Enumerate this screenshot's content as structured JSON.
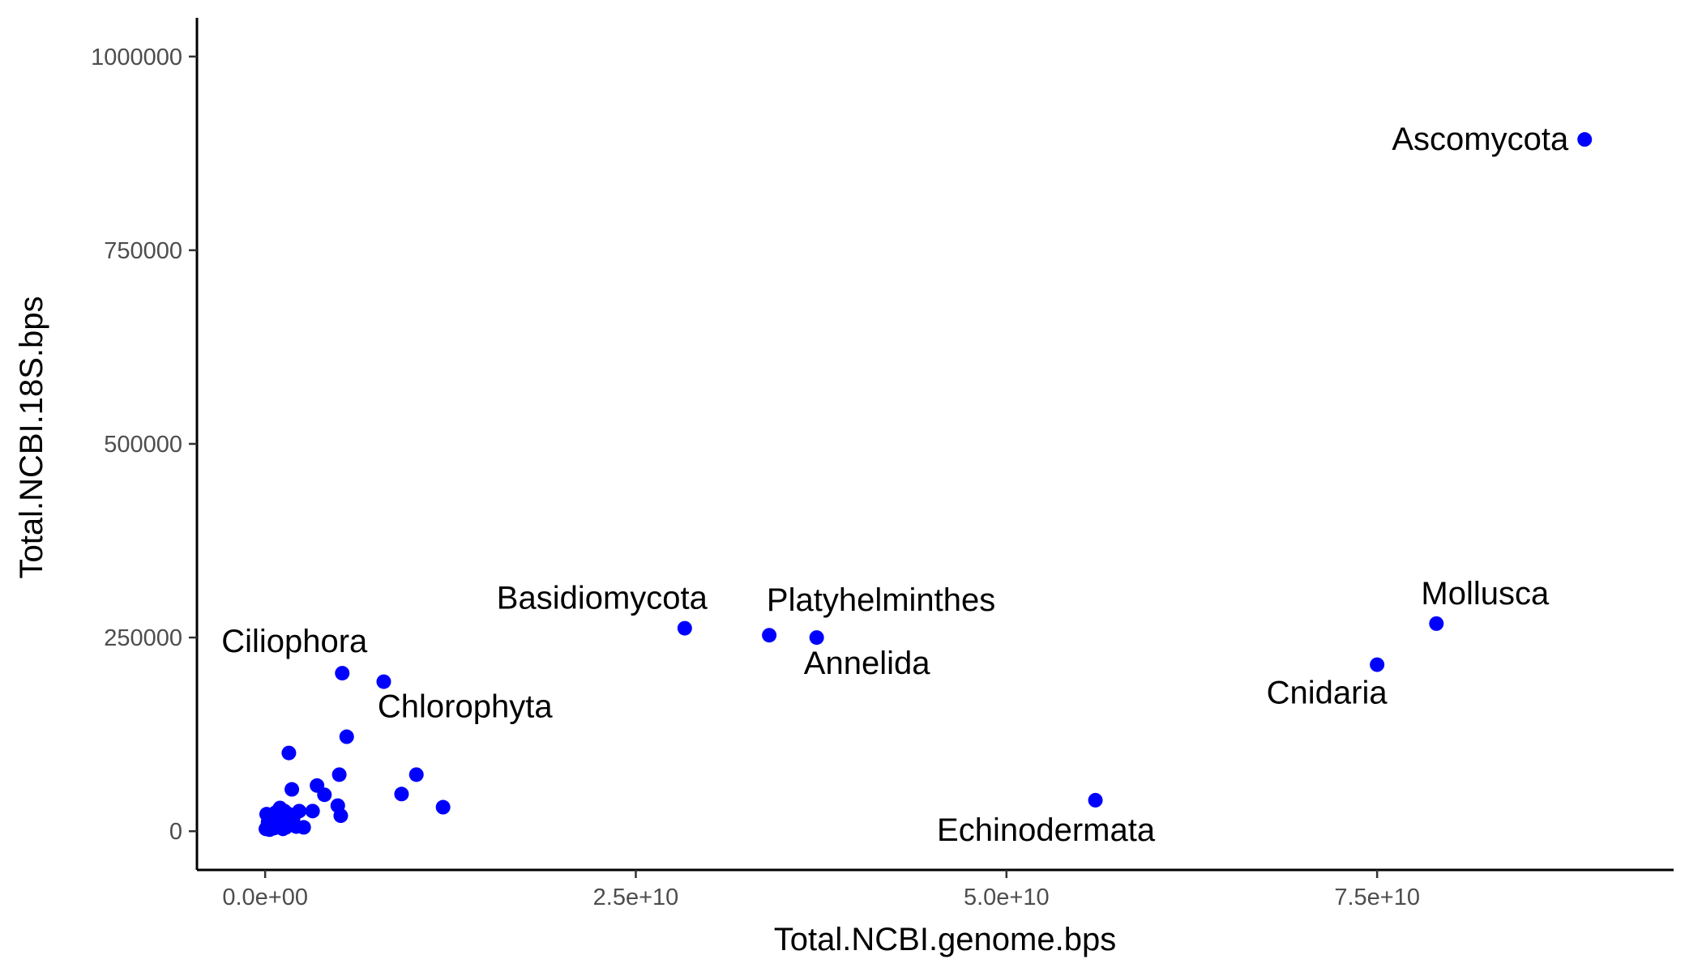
{
  "chart_data": {
    "type": "scatter",
    "title": "",
    "xlabel": "Total.NCBI.genome.bps",
    "ylabel": "Total.NCBI.18S.bps",
    "xlim": [
      -4600000000.0,
      95000000000.0
    ],
    "ylim": [
      -50000,
      1050000
    ],
    "grid": false,
    "point_color": "#0000ff",
    "x_ticks": [
      {
        "value": 0,
        "label": "0.0e+00"
      },
      {
        "value": 25000000000.0,
        "label": "2.5e+10"
      },
      {
        "value": 50000000000.0,
        "label": "5.0e+10"
      },
      {
        "value": 75000000000.0,
        "label": "7.5e+10"
      }
    ],
    "y_ticks": [
      {
        "value": 0,
        "label": "0"
      },
      {
        "value": 250000,
        "label": "250000"
      },
      {
        "value": 500000,
        "label": "500000"
      },
      {
        "value": 750000,
        "label": "750000"
      },
      {
        "value": 1000000,
        "label": "1000000"
      }
    ],
    "labeled_points": [
      {
        "label": "Ascomycota",
        "x": 89000000000.0,
        "y": 893000,
        "label_pos": "left"
      },
      {
        "label": "Mollusca",
        "x": 79000000000.0,
        "y": 268000,
        "label_pos": "above"
      },
      {
        "label": "Cnidaria",
        "x": 75000000000.0,
        "y": 215000,
        "label_pos": "below-left"
      },
      {
        "label": "Echinodermata",
        "x": 56000000000.0,
        "y": 40000,
        "label_pos": "below-left"
      },
      {
        "label": "Basidiomycota",
        "x": 28300000000.0,
        "y": 262000,
        "label_pos": "above-left"
      },
      {
        "label": "Platyhelminthes",
        "x": 34000000000.0,
        "y": 253000,
        "label_pos": "above-right"
      },
      {
        "label": "Annelida",
        "x": 37200000000.0,
        "y": 250000,
        "label_pos": "below-right"
      },
      {
        "label": "Ciliophora",
        "x": 5200000000.0,
        "y": 204000,
        "label_pos": "above-left"
      },
      {
        "label": "Chlorophyta",
        "x": 5500000000.0,
        "y": 122000,
        "label_pos": "above-right"
      }
    ],
    "points": [
      {
        "x": 8000000000.0,
        "y": 193000
      },
      {
        "x": 1600000000.0,
        "y": 101000
      },
      {
        "x": 1800000000.0,
        "y": 54000
      },
      {
        "x": 3500000000.0,
        "y": 59000
      },
      {
        "x": 4000000000.0,
        "y": 47000
      },
      {
        "x": 5000000000.0,
        "y": 73000
      },
      {
        "x": 9200000000.0,
        "y": 48000
      },
      {
        "x": 10200000000.0,
        "y": 73000
      },
      {
        "x": 12000000000.0,
        "y": 31000
      },
      {
        "x": 5100000000.0,
        "y": 20000
      },
      {
        "x": 4900000000.0,
        "y": 33000
      },
      {
        "x": 3200000000.0,
        "y": 26000
      },
      {
        "x": 2300000000.0,
        "y": 26000
      },
      {
        "x": 1900000000.0,
        "y": 18000
      },
      {
        "x": 1600000000.0,
        "y": 22000
      },
      {
        "x": 1300000000.0,
        "y": 26000
      },
      {
        "x": 1000000000.0,
        "y": 30000
      },
      {
        "x": 700000000.0,
        "y": 24000
      },
      {
        "x": 400000000.0,
        "y": 20000
      },
      {
        "x": 100000000.0,
        "y": 22000
      },
      {
        "x": 200000000.0,
        "y": 12000
      },
      {
        "x": 500000000.0,
        "y": 9000
      },
      {
        "x": 800000000.0,
        "y": 14000
      },
      {
        "x": 1100000000.0,
        "y": 8000
      },
      {
        "x": 1400000000.0,
        "y": 5000
      },
      {
        "x": 1800000000.0,
        "y": 10000
      },
      {
        "x": 2100000000.0,
        "y": 6000
      },
      {
        "x": 2600000000.0,
        "y": 5000
      },
      {
        "x": 50000000.0,
        "y": 3000
      },
      {
        "x": 300000000.0,
        "y": 2000
      },
      {
        "x": 600000000.0,
        "y": 4000
      },
      {
        "x": 1200000000.0,
        "y": 3000
      },
      {
        "x": 150000000.0,
        "y": 6000
      },
      {
        "x": 900000000.0,
        "y": 18000
      }
    ]
  }
}
